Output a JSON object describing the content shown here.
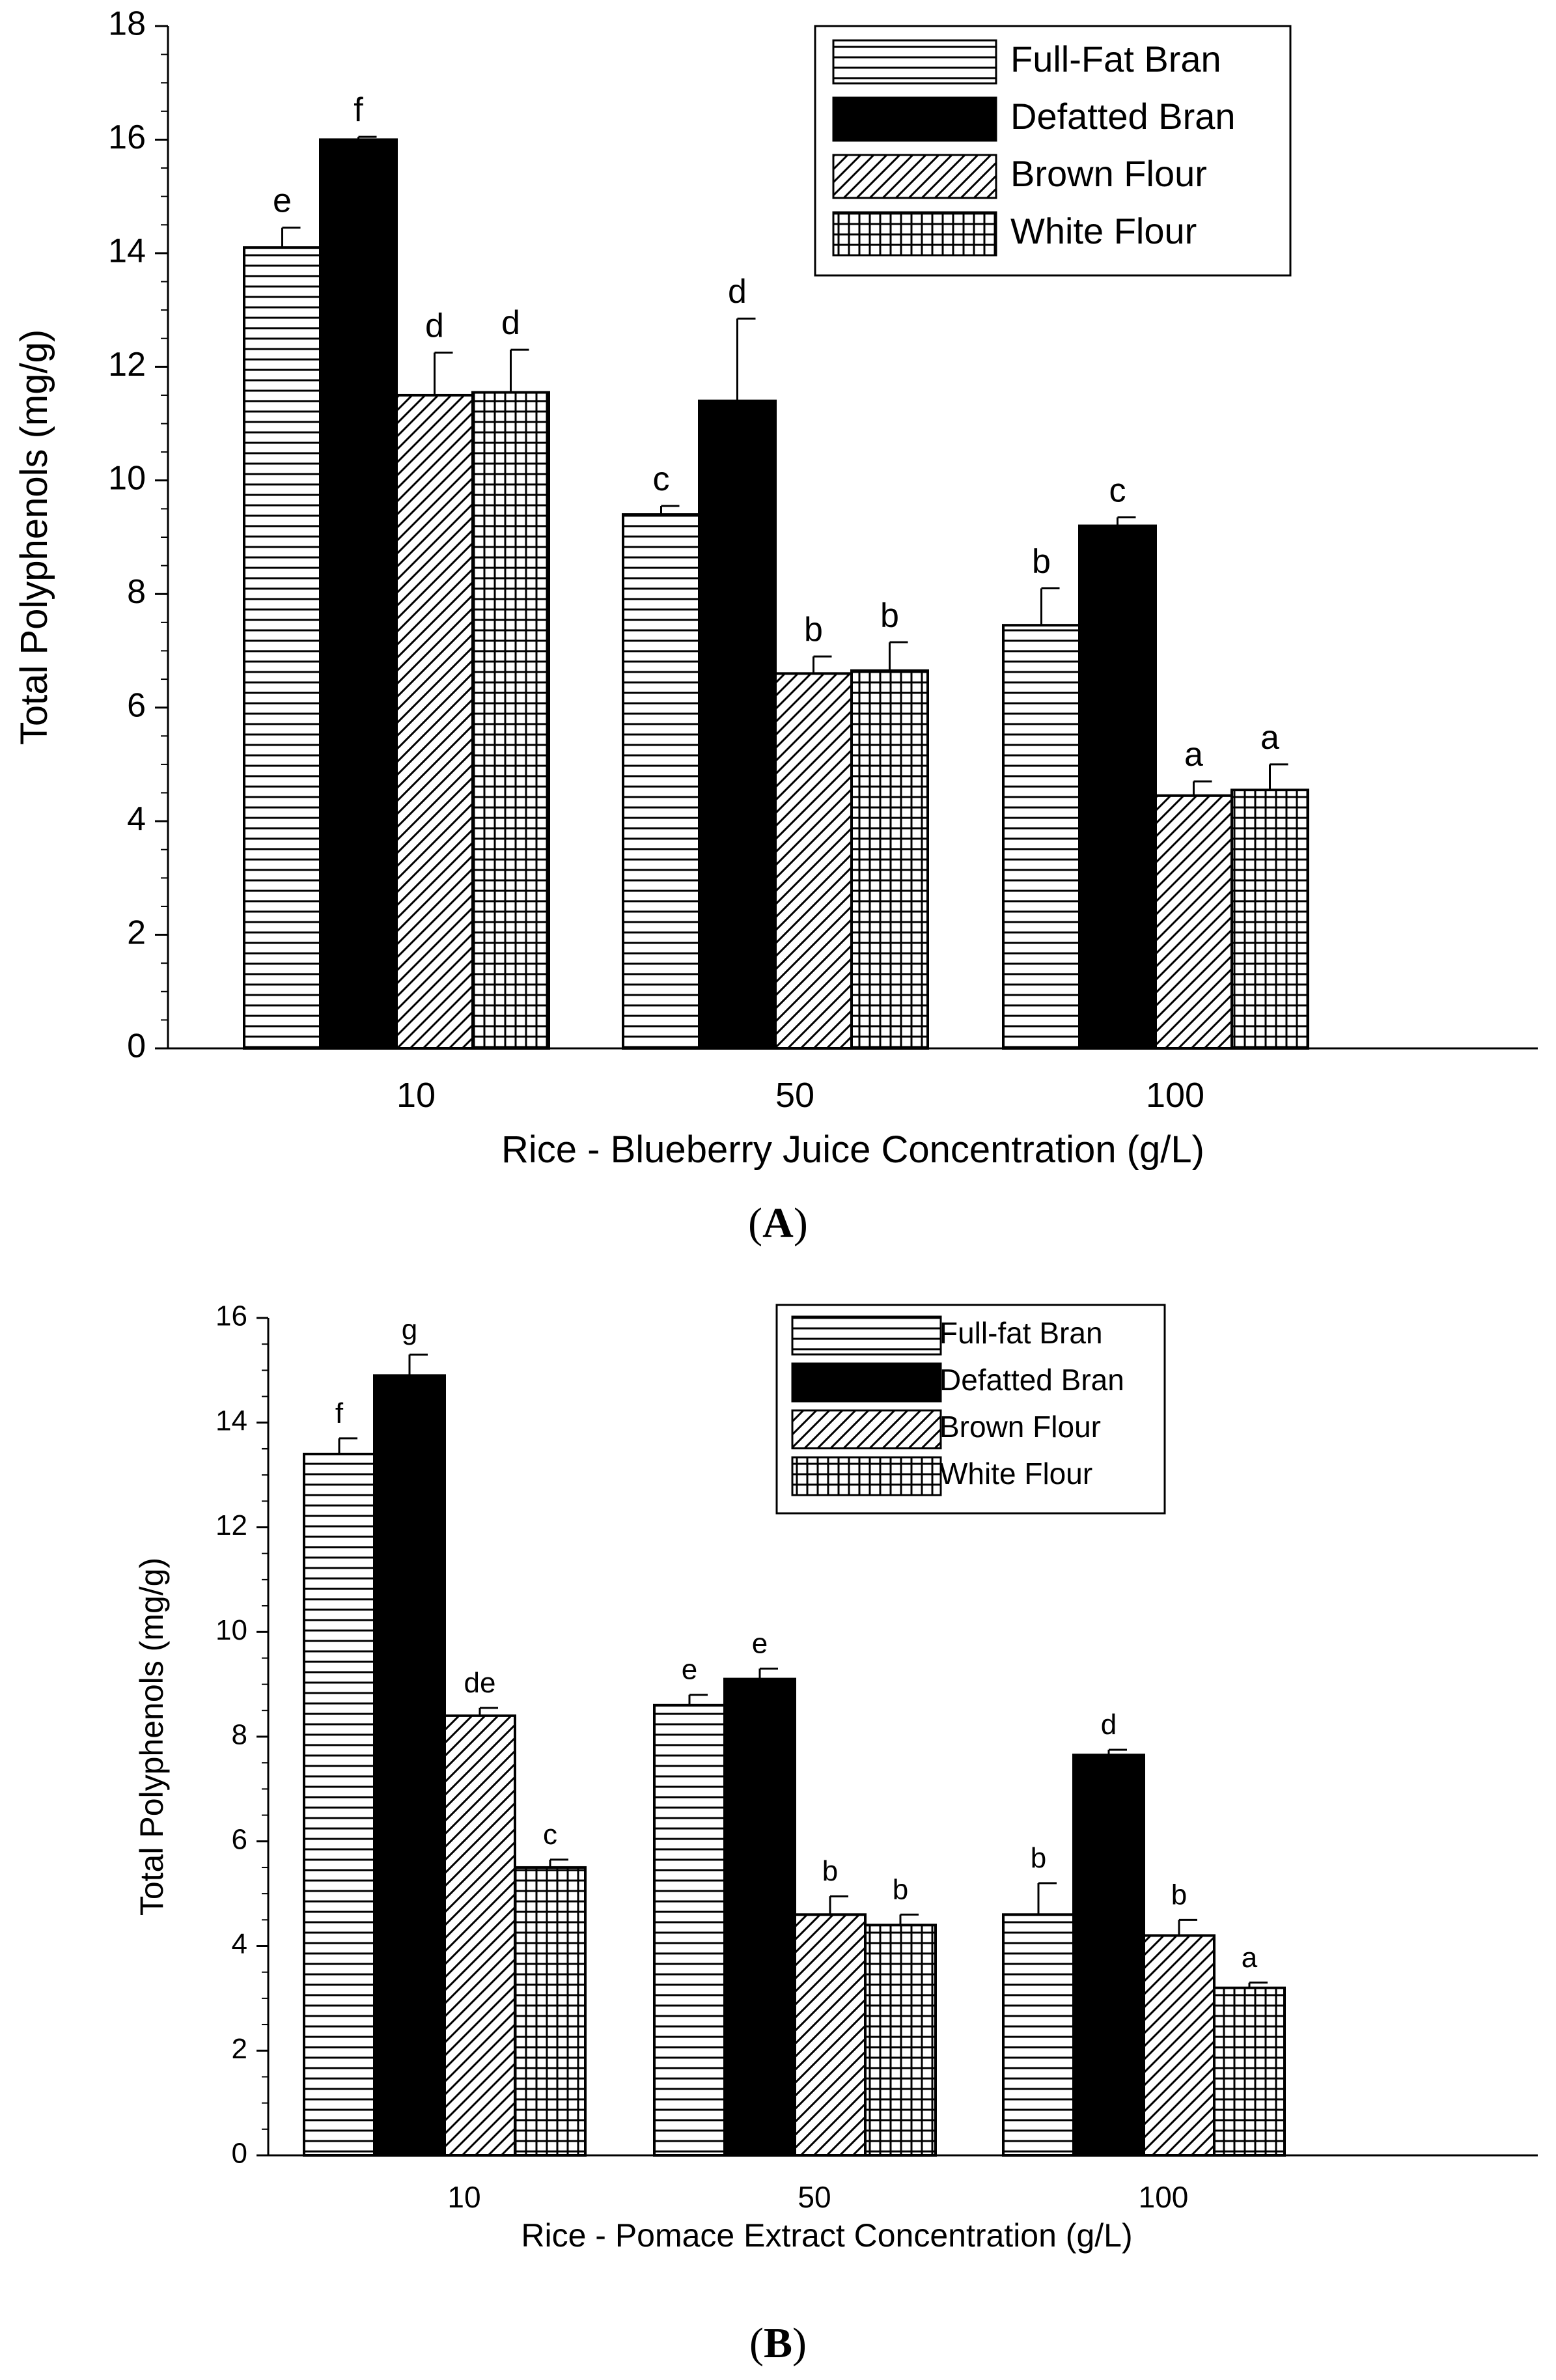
{
  "colors": {
    "ink": "#000000",
    "paper": "#ffffff"
  },
  "chart_data": [
    {
      "type": "bar",
      "panel_label": "A",
      "title": "",
      "xlabel": "Rice - Blueberry Juice Concentration (g/L)",
      "ylabel": "Total Polyphenols (mg/g)",
      "ylim": [
        0,
        18
      ],
      "yticks": [
        0,
        2,
        4,
        6,
        8,
        10,
        12,
        14,
        16,
        18
      ],
      "ytick_labels": [
        "0",
        "2",
        "4",
        "6",
        "8",
        "10",
        "12",
        "14",
        "16",
        "18"
      ],
      "categories": [
        "10",
        "50",
        "100"
      ],
      "legend_position": "top-right",
      "series": [
        {
          "name": "Full-Fat Bran",
          "pattern": "hlines",
          "values": [
            14.1,
            9.4,
            7.45
          ],
          "errors": [
            0.35,
            0.15,
            0.65
          ],
          "letters": [
            "e",
            "c",
            "b"
          ]
        },
        {
          "name": "Defatted Bran",
          "pattern": "solid",
          "values": [
            16.0,
            11.4,
            9.2
          ],
          "errors": [
            0.05,
            1.45,
            0.15
          ],
          "letters": [
            "f",
            "d",
            "c"
          ]
        },
        {
          "name": "Brown Flour",
          "pattern": "diag",
          "values": [
            11.5,
            6.6,
            4.45
          ],
          "errors": [
            0.75,
            0.3,
            0.25
          ],
          "letters": [
            "d",
            "b",
            "a"
          ]
        },
        {
          "name": "White Flour",
          "pattern": "grid",
          "values": [
            11.55,
            6.65,
            4.55
          ],
          "errors": [
            0.75,
            0.5,
            0.45
          ],
          "letters": [
            "d",
            "b",
            "a"
          ]
        }
      ]
    },
    {
      "type": "bar",
      "panel_label": "B",
      "title": "",
      "xlabel": "Rice - Pomace Extract Concentration (g/L)",
      "ylabel": "Total Polyphenols (mg/g)",
      "ylim": [
        0,
        16
      ],
      "yticks": [
        0,
        2,
        4,
        6,
        8,
        10,
        12,
        14,
        16
      ],
      "ytick_labels": [
        "0",
        "2",
        "4",
        "6",
        "8",
        "10",
        "12",
        "14",
        "16"
      ],
      "categories": [
        "10",
        "50",
        "100"
      ],
      "legend_position": "top-right",
      "series": [
        {
          "name": "Full-fat Bran",
          "pattern": "hlines",
          "values": [
            13.4,
            8.6,
            4.6
          ],
          "errors": [
            0.3,
            0.2,
            0.6
          ],
          "letters": [
            "f",
            "e",
            "b"
          ]
        },
        {
          "name": "Defatted Bran",
          "pattern": "solid",
          "values": [
            14.9,
            9.1,
            7.65
          ],
          "errors": [
            0.4,
            0.2,
            0.1
          ],
          "letters": [
            "g",
            "e",
            "d"
          ]
        },
        {
          "name": "Brown Flour",
          "pattern": "diag",
          "values": [
            8.4,
            4.6,
            4.2
          ],
          "errors": [
            0.15,
            0.35,
            0.3
          ],
          "letters": [
            "de",
            "b",
            "b"
          ]
        },
        {
          "name": "White Flour",
          "pattern": "grid",
          "values": [
            5.5,
            4.4,
            3.2
          ],
          "errors": [
            0.15,
            0.2,
            0.1
          ],
          "letters": [
            "c",
            "b",
            "a"
          ]
        }
      ]
    }
  ]
}
